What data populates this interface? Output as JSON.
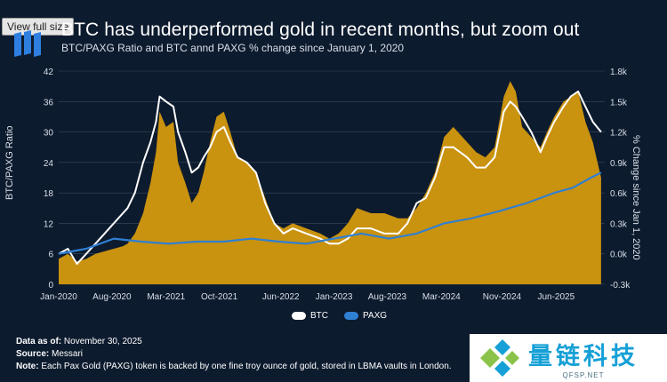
{
  "image_ui": {
    "view_full_size": "View full size"
  },
  "header": {
    "title": "BTC has underperformed gold in recent months, but zoom out",
    "subtitle": "BTC/PAXG Ratio and BTC annd PAXG % change since January 1, 2020"
  },
  "chart_data": {
    "type": "area",
    "title": "BTC has underperformed gold in recent months, but zoom out",
    "subtitle": "BTC/PAXG Ratio and BTC annd PAXG % change since January 1, 2020",
    "ylabel": "BTC/PAXG Ratio",
    "ylabel_right": "% Change since Jan 1, 2020",
    "ylim": [
      0,
      42
    ],
    "y_ticks": [
      "0",
      "6",
      "12",
      "18",
      "24",
      "30",
      "36",
      "42"
    ],
    "y2lim": [
      -0.3,
      1.8
    ],
    "y2_ticks": [
      "-0.3k",
      "0.0k",
      "0.3k",
      "0.6k",
      "0.9k",
      "1.2k",
      "1.5k",
      "1.8k"
    ],
    "x_ticks": [
      "Jan-2020",
      "Aug-2020",
      "Mar-2021",
      "Oct-2021",
      "Jun-2022",
      "Jan-2023",
      "Aug-2023",
      "Mar-2024",
      "Nov-2024",
      "Jun-2025"
    ],
    "x_tick_positions": [
      2020.0,
      2020.58,
      2021.17,
      2021.75,
      2022.42,
      2023.0,
      2023.58,
      2024.17,
      2024.83,
      2025.42
    ],
    "grid": true,
    "legend_position": "bottom-center",
    "series": [
      {
        "name": "BTC/PAXG Ratio",
        "axis": "left",
        "color": "#c9920f",
        "x": [
          2020.0,
          2020.1,
          2020.2,
          2020.3,
          2020.4,
          2020.5,
          2020.6,
          2020.7,
          2020.75,
          2020.83,
          2020.92,
          2021.0,
          2021.06,
          2021.1,
          2021.17,
          2021.25,
          2021.3,
          2021.38,
          2021.45,
          2021.52,
          2021.58,
          2021.65,
          2021.72,
          2021.8,
          2021.87,
          2021.95,
          2022.05,
          2022.15,
          2022.25,
          2022.35,
          2022.45,
          2022.55,
          2022.7,
          2022.85,
          2022.95,
          2023.05,
          2023.15,
          2023.25,
          2023.4,
          2023.55,
          2023.7,
          2023.8,
          2023.9,
          2024.0,
          2024.1,
          2024.2,
          2024.3,
          2024.45,
          2024.55,
          2024.65,
          2024.75,
          2024.85,
          2024.92,
          2024.98,
          2025.05,
          2025.15,
          2025.25,
          2025.32,
          2025.4,
          2025.5,
          2025.58,
          2025.66,
          2025.74,
          2025.82,
          2025.91
        ],
        "values": [
          5,
          6,
          4.5,
          5,
          6,
          6.5,
          7,
          7.5,
          8,
          10,
          14,
          20,
          26,
          34,
          31,
          32,
          24,
          20,
          16,
          18,
          22,
          28,
          33,
          34,
          30,
          25,
          24,
          22,
          17,
          12,
          11,
          12,
          11,
          10,
          9,
          10,
          12,
          15,
          14,
          14,
          13,
          13,
          15,
          18,
          22,
          29,
          31,
          28,
          26,
          25,
          27,
          37,
          40,
          38,
          31,
          29,
          27,
          30,
          33,
          36,
          37,
          38,
          32,
          28,
          21
        ]
      },
      {
        "name": "BTC",
        "axis": "right",
        "color": "#ffffff",
        "x": [
          2020.0,
          2020.1,
          2020.2,
          2020.3,
          2020.4,
          2020.5,
          2020.6,
          2020.7,
          2020.75,
          2020.83,
          2020.92,
          2021.0,
          2021.06,
          2021.1,
          2021.17,
          2021.25,
          2021.3,
          2021.38,
          2021.45,
          2021.52,
          2021.58,
          2021.65,
          2021.72,
          2021.8,
          2021.87,
          2021.95,
          2022.05,
          2022.15,
          2022.25,
          2022.35,
          2022.45,
          2022.55,
          2022.7,
          2022.85,
          2022.95,
          2023.05,
          2023.15,
          2023.25,
          2023.4,
          2023.55,
          2023.7,
          2023.8,
          2023.9,
          2024.0,
          2024.1,
          2024.2,
          2024.3,
          2024.45,
          2024.55,
          2024.65,
          2024.75,
          2024.85,
          2024.92,
          2024.98,
          2025.05,
          2025.15,
          2025.25,
          2025.32,
          2025.4,
          2025.5,
          2025.58,
          2025.66,
          2025.74,
          2025.82,
          2025.91
        ],
        "values": [
          0.0,
          0.05,
          -0.1,
          0.0,
          0.1,
          0.2,
          0.3,
          0.4,
          0.45,
          0.6,
          0.9,
          1.1,
          1.3,
          1.55,
          1.5,
          1.45,
          1.2,
          1.0,
          0.8,
          0.85,
          0.95,
          1.05,
          1.2,
          1.25,
          1.1,
          0.95,
          0.9,
          0.8,
          0.5,
          0.3,
          0.2,
          0.25,
          0.2,
          0.15,
          0.1,
          0.1,
          0.15,
          0.25,
          0.25,
          0.2,
          0.2,
          0.3,
          0.5,
          0.55,
          0.75,
          1.05,
          1.05,
          0.95,
          0.85,
          0.85,
          0.95,
          1.4,
          1.5,
          1.45,
          1.35,
          1.2,
          1.0,
          1.15,
          1.3,
          1.45,
          1.55,
          1.6,
          1.45,
          1.3,
          1.2
        ]
      },
      {
        "name": "PAXG",
        "axis": "right",
        "color": "#2f7fd3",
        "x": [
          2020.0,
          2020.3,
          2020.6,
          2020.9,
          2021.2,
          2021.5,
          2021.8,
          2022.1,
          2022.4,
          2022.7,
          2023.0,
          2023.3,
          2023.6,
          2023.9,
          2024.2,
          2024.5,
          2024.8,
          2025.1,
          2025.4,
          2025.6,
          2025.8,
          2025.91
        ],
        "values": [
          0.0,
          0.05,
          0.15,
          0.12,
          0.1,
          0.12,
          0.12,
          0.15,
          0.12,
          0.1,
          0.15,
          0.2,
          0.15,
          0.2,
          0.3,
          0.35,
          0.42,
          0.5,
          0.6,
          0.65,
          0.75,
          0.8
        ]
      }
    ]
  },
  "legend": {
    "btc": "BTC",
    "paxg": "PAXG"
  },
  "footer": {
    "data_label": "Data as of:",
    "data_value": "November 30, 2025",
    "source_label": "Source:",
    "source_value": "Messari",
    "note_label": "Note:",
    "note_value": "Each Pax Gold (PAXG) token is backed by one fine troy ounce of gold, stored in LBMA vaults in London."
  },
  "watermark": {
    "name": "量链科技",
    "sub": "QFSP.NET"
  },
  "colors": {
    "background": "#0d1b2e",
    "ratio_fill": "#c9920f",
    "btc": "#ffffff",
    "paxg": "#2f7fd3",
    "grid": "#3a4a62"
  }
}
